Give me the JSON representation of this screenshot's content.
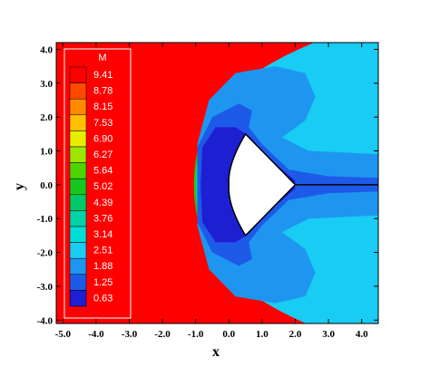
{
  "chart_data": {
    "type": "heatmap",
    "title": "",
    "xlabel": "x",
    "ylabel": "y",
    "xlim": [
      -5.2,
      4.5
    ],
    "ylim": [
      -4.1,
      4.2
    ],
    "x_ticks": [
      -5.0,
      -4.0,
      -3.0,
      -2.0,
      -1.0,
      0.0,
      1.0,
      2.0,
      3.0,
      4.0
    ],
    "x_tick_labels": [
      "-5.0",
      "-4.0",
      "-3.0",
      "-2.0",
      "-1.0",
      "0.0",
      "1.0",
      "2.0",
      "3.0",
      "4.0"
    ],
    "y_ticks": [
      4.0,
      3.0,
      2.0,
      1.0,
      0.0,
      -1.0,
      -2.0,
      -3.0,
      -4.0
    ],
    "y_tick_labels": [
      "4.0",
      "3.0",
      "2.0",
      "1.0",
      "0.0",
      "-1.0",
      "-2.0",
      "-3.0",
      "-4.0"
    ],
    "legend": {
      "title": "M",
      "placement": "top-left",
      "levels": [
        9.41,
        8.78,
        8.15,
        7.53,
        6.9,
        6.27,
        5.64,
        5.02,
        4.39,
        3.76,
        3.14,
        2.51,
        1.88,
        1.25,
        0.63
      ],
      "level_labels": [
        "9.41",
        "8.78",
        "8.15",
        "7.53",
        "6.90",
        "6.27",
        "5.64",
        "5.02",
        "4.39",
        "3.76",
        "3.14",
        "2.51",
        "1.88",
        "1.25",
        "0.63"
      ],
      "colors": [
        "#ff0000",
        "#ff4a00",
        "#ff8a00",
        "#ffc000",
        "#e6ee00",
        "#9ae600",
        "#4ed400",
        "#16c81e",
        "#00c866",
        "#00d2a6",
        "#00dcd6",
        "#18ccf4",
        "#1e96f0",
        "#1e5ae8",
        "#1e1ed2"
      ]
    },
    "body": {
      "shape": "blunt-cone",
      "nose_x": 0.0,
      "apex_x": 2.0,
      "half_height": 1.5
    },
    "shock_standoff_x": -1.3,
    "wake_line": {
      "y": 0.0,
      "x_from": 2.0,
      "x_to": 4.5
    }
  },
  "colors": {
    "freestream": "#ff0000",
    "subsonic_core": "#1e1ed2",
    "outer_flow": "#18ccf4",
    "mid_flow": "#1e96f0",
    "body_fill": "#ffffff"
  }
}
